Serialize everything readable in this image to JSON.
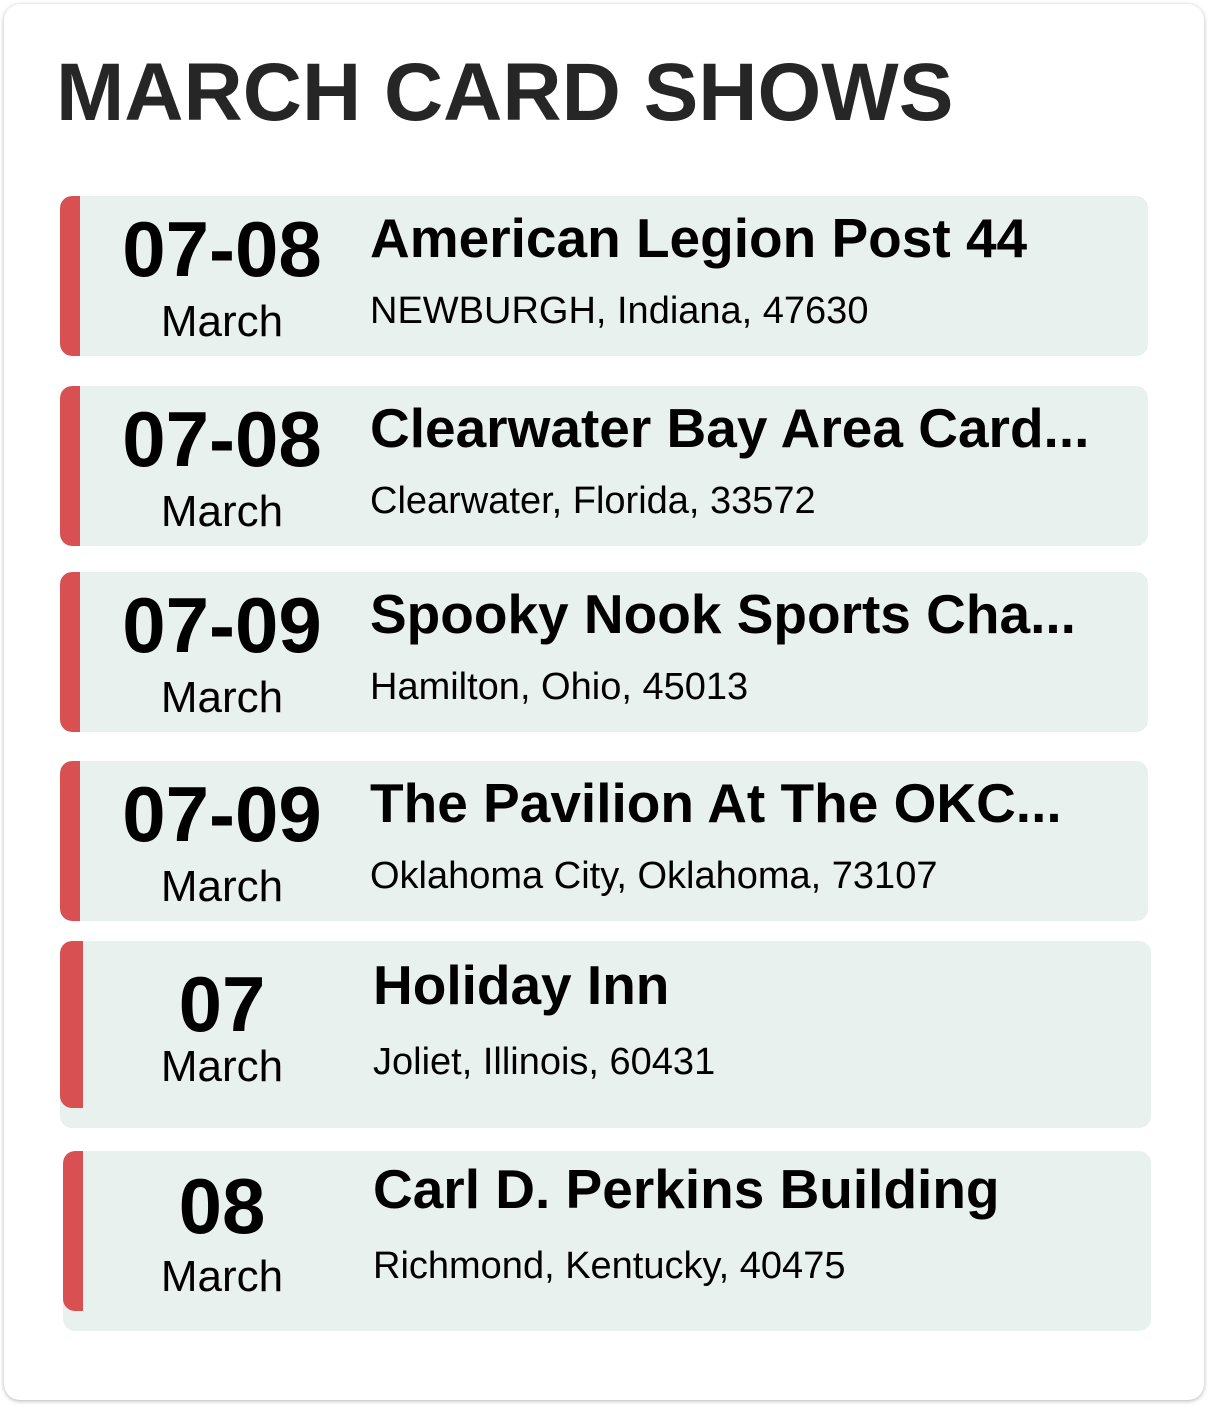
{
  "title": "MARCH CARD SHOWS",
  "colors": {
    "accent": "#d95052",
    "card_background": "#e9f1ef",
    "title": "#262626"
  },
  "shows": [
    {
      "date": "07-08",
      "month": "March",
      "name": "American Legion Post 44",
      "location": "NEWBURGH, Indiana, 47630"
    },
    {
      "date": "07-08",
      "month": "March",
      "name": "Clearwater Bay Area Card...",
      "location": "Clearwater, Florida, 33572"
    },
    {
      "date": "07-09",
      "month": "March",
      "name": "Spooky Nook Sports Cha...",
      "location": "Hamilton, Ohio, 45013"
    },
    {
      "date": "07-09",
      "month": "March",
      "name": "The Pavilion At The OKC...",
      "location": "Oklahoma City, Oklahoma, 73107"
    },
    {
      "date": "07",
      "month": "March",
      "name": "Holiday Inn",
      "location": "Joliet, Illinois, 60431"
    },
    {
      "date": "08",
      "month": "March",
      "name": "Carl D. Perkins Building",
      "location": "Richmond, Kentucky, 40475"
    }
  ]
}
